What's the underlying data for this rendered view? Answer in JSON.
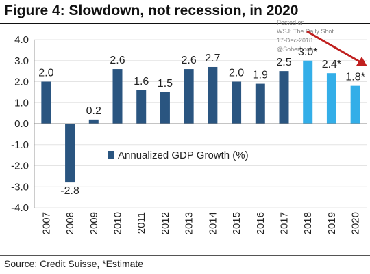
{
  "title": "Figure 4: Slowdown, not recession, in 2020",
  "source": "Source: Credit Suisse, *Estimate",
  "watermark": {
    "line1": "Posted on",
    "line2": "WSJ: The Daily Shot",
    "line3": "17-Dec-2018",
    "line4": "@SoberLook"
  },
  "colors": {
    "actual": "#2a5580",
    "estimate": "#33aee8",
    "arrow": "#c0201f",
    "gridline": "#e4e4e4"
  },
  "chart_data": {
    "type": "bar",
    "categories": [
      "2007",
      "2008",
      "2009",
      "2010",
      "2011",
      "2012",
      "2013",
      "2014",
      "2015",
      "2016",
      "2017",
      "2018",
      "2019",
      "2020"
    ],
    "values": [
      2.0,
      -2.8,
      0.2,
      2.6,
      1.6,
      1.5,
      2.6,
      2.7,
      2.0,
      1.9,
      2.5,
      3.0,
      2.4,
      1.8
    ],
    "data_labels": [
      "2.0",
      "-2.8",
      "0.2",
      "2.6",
      "1.6",
      "1.5",
      "2.6",
      "2.7",
      "2.0",
      "1.9",
      "2.5",
      "3.0*",
      "2.4*",
      "1.8*"
    ],
    "estimate": [
      false,
      false,
      false,
      false,
      false,
      false,
      false,
      false,
      false,
      false,
      false,
      true,
      true,
      true
    ],
    "yticks": [
      "4.0",
      "3.0",
      "2.0",
      "1.0",
      "0.0",
      "-1.0",
      "-2.0",
      "-3.0",
      "-4.0"
    ],
    "ylim": [
      -4.0,
      4.0
    ],
    "legend": {
      "label": "Annualized GDP Growth (%)",
      "placement": "center-left"
    },
    "grid": true,
    "xlabel": "",
    "ylabel": ""
  }
}
